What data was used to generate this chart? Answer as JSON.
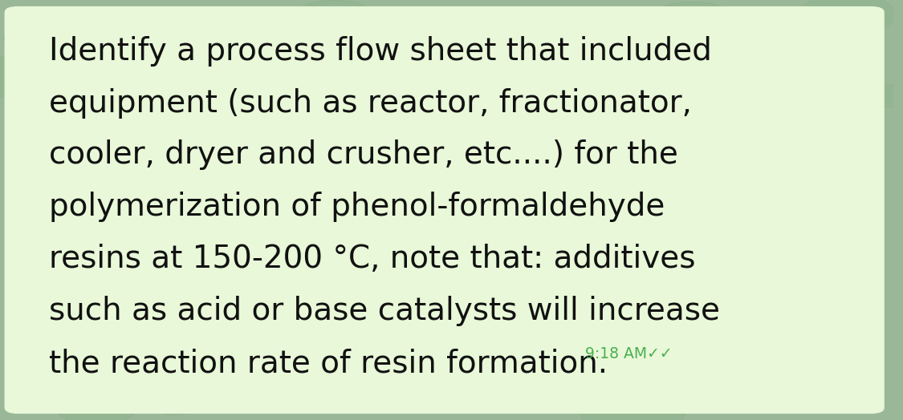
{
  "background_color": "#9ab898",
  "bubble_color": "#e8f8d8",
  "text_color": "#111111",
  "timestamp_color": "#4caf50",
  "text_lines": [
    "Identify a process flow sheet that included",
    "equipment (such as reactor, fractionator,",
    "cooler, dryer and crusher, etc....) for the",
    "polymerization of phenol-formaldehyde",
    "resins at 150-200 °C, note that: additives",
    "such as acid or base catalysts will increase",
    "the reaction rate of resin formation."
  ],
  "timestamp": "9:18 AM✓✓",
  "font_size": 28,
  "timestamp_fontsize": 13.5,
  "figsize": [
    11.25,
    5.24
  ],
  "dpi": 100
}
